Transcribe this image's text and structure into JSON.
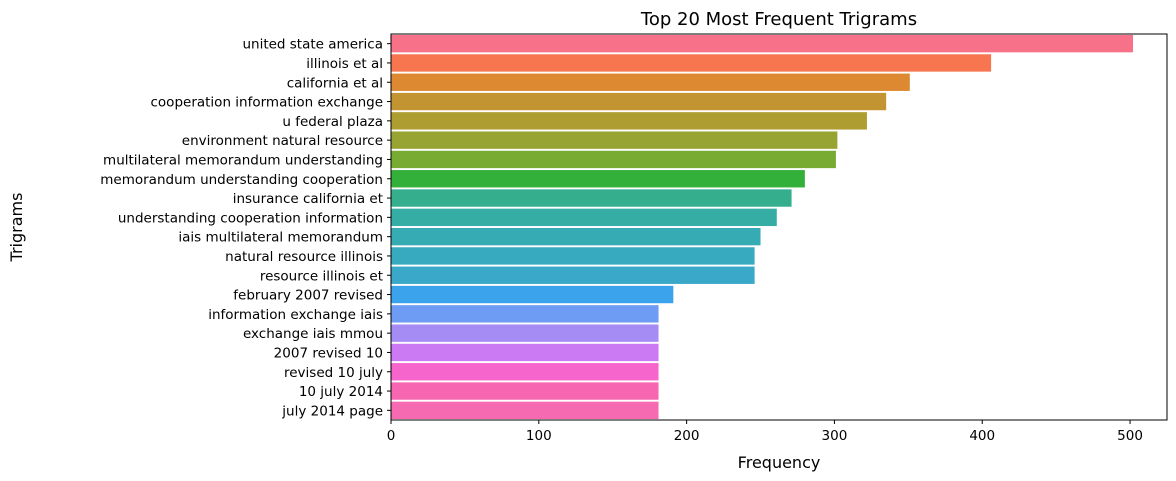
{
  "chart_data": {
    "type": "bar",
    "orientation": "horizontal",
    "title": "Top 20 Most Frequent Trigrams",
    "xlabel": "Frequency",
    "ylabel": "Trigrams",
    "xlim": [
      0,
      525
    ],
    "xticks": [
      "0",
      "100",
      "200",
      "300",
      "400",
      "500"
    ],
    "grid": false,
    "categories": [
      "united state america",
      "illinois et al",
      "california et al",
      "cooperation information exchange",
      "u federal plaza",
      "environment natural resource",
      "multilateral memorandum understanding",
      "memorandum understanding cooperation",
      "insurance california et",
      "understanding cooperation information",
      "iais multilateral memorandum",
      "natural resource illinois",
      "resource illinois et",
      "february 2007 revised",
      "information exchange iais",
      "exchange iais mmou",
      "2007 revised 10",
      "revised 10 july",
      "10 july 2014",
      "july 2014 page"
    ],
    "values": [
      502,
      406,
      351,
      335,
      322,
      302,
      301,
      280,
      271,
      261,
      250,
      246,
      246,
      191,
      181,
      181,
      181,
      181,
      181,
      181
    ],
    "colors": [
      "#f77189",
      "#f7754f",
      "#dc8932",
      "#c39532",
      "#ae9d31",
      "#97a431",
      "#77ab31",
      "#33b039",
      "#34ae8d",
      "#36ada4",
      "#37abb4",
      "#38aabf",
      "#3aa8c9",
      "#3ba3ec",
      "#6e9bf4",
      "#a48cf4",
      "#cc7af4",
      "#f565cc",
      "#f666b1",
      "#f56ab1"
    ]
  }
}
